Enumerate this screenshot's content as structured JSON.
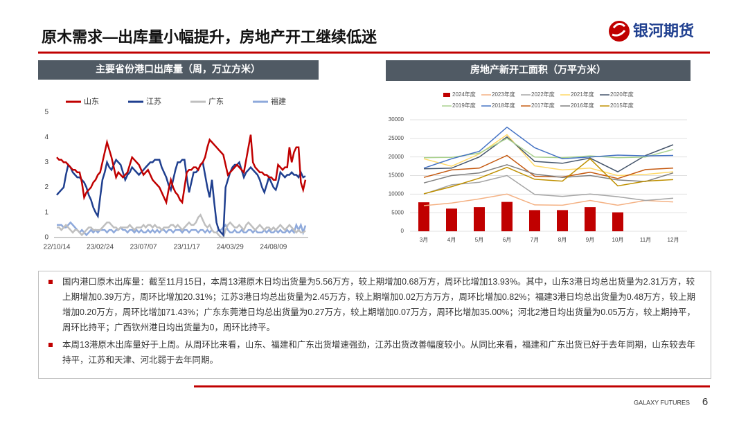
{
  "header": {
    "title": "原木需求—出库量小幅提升，房地产开工继续低迷",
    "logo": "银河期货"
  },
  "chart_data": [
    {
      "type": "line",
      "title": "主要省份港口出库量（周，万立方米）",
      "categories": [
        "22/10/14",
        null,
        null,
        null,
        null,
        null,
        null,
        null,
        null,
        null,
        null,
        null,
        null,
        null,
        null,
        null,
        null,
        null,
        null,
        "23/02/24",
        null,
        null,
        null,
        null,
        null,
        null,
        null,
        null,
        null,
        null,
        null,
        null,
        null,
        null,
        null,
        null,
        null,
        null,
        "23/07/07",
        null,
        null,
        null,
        null,
        null,
        null,
        null,
        null,
        null,
        null,
        null,
        null,
        null,
        null,
        null,
        null,
        null,
        null,
        "23/11/17",
        null,
        null,
        null,
        null,
        null,
        null,
        null,
        null,
        null,
        null,
        null,
        null,
        null,
        null,
        null,
        null,
        null,
        null,
        "24/03/29",
        null,
        null,
        null,
        null,
        null,
        null,
        null,
        null,
        null,
        null,
        null,
        null,
        null,
        null,
        null,
        null,
        null,
        null,
        "24/08/09",
        null,
        null,
        null,
        null,
        null,
        null,
        null,
        null,
        null,
        null,
        null,
        null,
        null,
        null
      ],
      "ylim": [
        0,
        5
      ],
      "yticks": [
        0,
        1,
        2,
        3,
        4,
        5
      ],
      "grid": false,
      "legend": "top",
      "series": [
        {
          "name": "山东",
          "color": "#c00000",
          "values": [
            3.2,
            3.1,
            3.1,
            3.0,
            3.0,
            2.9,
            2.8,
            2.7,
            2.7,
            2.6,
            2.6,
            2.2,
            1.6,
            1.8,
            1.9,
            2.0,
            2.2,
            2.3,
            2.5,
            2.6,
            3.0,
            3.4,
            3.8,
            3.5,
            3.2,
            2.8,
            2.4,
            2.6,
            2.5,
            2.4,
            2.5,
            2.6,
            2.9,
            3.2,
            3.1,
            3.0,
            2.9,
            2.7,
            2.5,
            2.6,
            2.7,
            2.5,
            2.3,
            2.2,
            2.1,
            2.0,
            1.8,
            1.6,
            1.4,
            1.9,
            2.3,
            2.0,
            1.8,
            1.7,
            1.5,
            1.4,
            2.0,
            2.6,
            2.7,
            2.7,
            2.8,
            2.8,
            2.7,
            2.9,
            3.0,
            3.2,
            3.6,
            3.9,
            3.8,
            3.7,
            3.6,
            3.5,
            3.4,
            3.3,
            2.9,
            2.5,
            2.6,
            2.7,
            2.8,
            2.9,
            2.8,
            2.7,
            2.6,
            3.1,
            3.6,
            4.1,
            3.0,
            2.8,
            2.7,
            2.6,
            2.6,
            2.5,
            2.5,
            2.4,
            2.4,
            2.3,
            2.3,
            2.9,
            2.8,
            2.7,
            2.8,
            2.8,
            3.6,
            3.0,
            3.4,
            3.6,
            3.6,
            2.2,
            1.9,
            2.3
          ]
        },
        {
          "name": "江苏",
          "color": "#1f3f8f",
          "values": [
            1.7,
            1.8,
            1.9,
            2.0,
            2.5,
            2.9,
            2.8,
            2.6,
            2.5,
            2.4,
            2.4,
            2.3,
            2.2,
            2.0,
            1.7,
            1.5,
            1.2,
            1.0,
            0.85,
            1.6,
            2.3,
            2.6,
            3.0,
            2.8,
            2.7,
            2.9,
            3.1,
            3.0,
            2.9,
            2.6,
            2.3,
            2.5,
            2.6,
            2.8,
            2.7,
            2.6,
            2.5,
            2.6,
            2.7,
            2.8,
            2.9,
            3.0,
            3.0,
            3.1,
            3.1,
            3.1,
            2.8,
            2.6,
            2.4,
            2.1,
            1.9,
            2.3,
            2.7,
            3.0,
            3.0,
            3.1,
            3.1,
            2.4,
            1.8,
            2.2,
            2.6,
            2.6,
            2.7,
            2.9,
            3.0,
            2.5,
            2.0,
            1.6,
            2.3,
            1.4,
            0.6,
            0.3,
            0.2,
            0.1,
            2.0,
            2.3,
            2.6,
            2.8,
            2.9,
            2.9,
            3.0,
            2.7,
            2.4,
            2.6,
            2.7,
            2.8,
            2.7,
            2.6,
            2.5,
            2.3,
            2.0,
            1.8,
            2.1,
            2.4,
            2.2,
            2.0,
            1.9,
            2.2,
            2.6,
            2.5,
            2.4,
            2.5,
            2.5,
            2.6,
            2.5,
            2.5,
            2.4,
            2.6,
            2.4,
            2.45
          ]
        },
        {
          "name": "广东",
          "color": "#bfbfbf",
          "values": [
            0.4,
            0.4,
            0.3,
            0.4,
            0.5,
            0.4,
            0.3,
            0.2,
            0.3,
            0.3,
            0.2,
            0.1,
            0.2,
            0.3,
            0.4,
            0.4,
            0.3,
            0.3,
            0.3,
            0.3,
            0.4,
            0.5,
            0.6,
            0.6,
            0.5,
            0.4,
            0.4,
            0.3,
            0.4,
            0.4,
            0.4,
            0.4,
            0.5,
            0.4,
            0.3,
            0.4,
            0.4,
            0.4,
            0.5,
            0.4,
            0.5,
            0.5,
            0.4,
            0.5,
            0.4,
            0.4,
            0.3,
            0.4,
            0.4,
            0.4,
            0.5,
            0.5,
            0.4,
            0.5,
            0.4,
            0.3,
            0.4,
            0.5,
            0.6,
            0.5,
            0.5,
            0.6,
            0.8,
            0.9,
            0.7,
            0.5,
            0.4,
            0.5,
            0.3,
            0.2,
            0.2,
            0.1,
            0.0,
            0.0,
            0.3,
            0.5,
            0.6,
            0.5,
            0.4,
            0.4,
            0.5,
            0.4,
            0.3,
            0.5,
            0.6,
            0.5,
            0.4,
            0.3,
            0.4,
            0.5,
            0.4,
            0.3,
            0.4,
            0.4,
            0.3,
            0.4,
            0.3,
            0.4,
            0.5,
            0.4,
            0.3,
            0.4,
            0.5,
            0.4,
            0.3,
            0.2,
            0.3,
            0.2,
            0.2,
            0.27
          ]
        },
        {
          "name": "福建",
          "color": "#8ea9db",
          "values": [
            0.5,
            0.5,
            0.5,
            0.4,
            0.4,
            0.5,
            0.6,
            0.5,
            0.4,
            0.3,
            0.2,
            0.3,
            0.2,
            0.1,
            0.2,
            0.3,
            0.2,
            0.3,
            0.2,
            0.3,
            0.3,
            0.3,
            0.2,
            0.3,
            0.3,
            0.2,
            0.3,
            0.3,
            0.4,
            0.3,
            0.3,
            0.2,
            0.3,
            0.3,
            0.2,
            0.3,
            0.2,
            0.3,
            0.2,
            0.2,
            0.3,
            0.2,
            0.3,
            0.2,
            0.3,
            0.2,
            0.3,
            0.3,
            0.2,
            0.3,
            0.3,
            0.2,
            0.3,
            0.3,
            0.3,
            0.2,
            0.3,
            0.3,
            0.2,
            0.3,
            0.3,
            0.3,
            0.2,
            0.3,
            0.3,
            0.2,
            0.3,
            0.2,
            0.3,
            0.2,
            0.2,
            0.3,
            0.3,
            0.4,
            0.5,
            0.3,
            0.2,
            0.2,
            0.3,
            0.2,
            0.2,
            0.3,
            0.2,
            0.2,
            0.3,
            0.3,
            0.2,
            0.3,
            0.2,
            0.2,
            0.2,
            0.3,
            0.2,
            0.3,
            0.2,
            0.2,
            0.3,
            0.2,
            0.3,
            0.2,
            0.2,
            0.3,
            0.2,
            0.3,
            0.2,
            0.5,
            0.3,
            0.5,
            0.2,
            0.48
          ]
        }
      ]
    },
    {
      "type": "bar",
      "title": "房地产新开工面积（万平方米）",
      "categories": [
        "3月",
        "4月",
        "5月",
        "6月",
        "7月",
        "8月",
        "9月",
        "10月",
        "11月",
        "12月"
      ],
      "ylim": [
        0,
        30000
      ],
      "yticks": [
        0,
        5000,
        10000,
        15000,
        20000,
        25000,
        30000
      ],
      "grid": true,
      "legend": "top",
      "series": [
        {
          "name": "2024年度",
          "type": "bar",
          "color": "#c00000",
          "values": [
            7800,
            6100,
            6500,
            7900,
            5700,
            5700,
            6500,
            5100,
            null,
            null
          ]
        },
        {
          "name": "2023年度",
          "type": "line",
          "color": "#f4b183",
          "values": [
            6900,
            7600,
            8700,
            10000,
            7100,
            7000,
            8300,
            7000,
            8300,
            7900
          ]
        },
        {
          "name": "2022年度",
          "type": "line",
          "color": "#a5a5a5",
          "values": [
            10000,
            12500,
            13200,
            15000,
            9900,
            9400,
            10000,
            9300,
            8300,
            8900
          ]
        },
        {
          "name": "2021年度",
          "type": "line",
          "color": "#ffd966",
          "values": [
            19500,
            17500,
            20800,
            26000,
            17600,
            16500,
            17000,
            15000,
            15300,
            16000
          ]
        },
        {
          "name": "2020年度",
          "type": "line",
          "color": "#44546a",
          "values": [
            16800,
            17000,
            20000,
            25400,
            18800,
            18300,
            19700,
            16000,
            20400,
            23300
          ]
        },
        {
          "name": "2019年度",
          "type": "line",
          "color": "#a9d18e",
          "values": [
            19800,
            19900,
            21000,
            25000,
            20000,
            19800,
            20300,
            19800,
            20000,
            22000
          ]
        },
        {
          "name": "2018年度",
          "type": "line",
          "color": "#4472c4",
          "values": [
            17000,
            19500,
            21500,
            28000,
            22500,
            19500,
            20000,
            20500,
            20300,
            20400
          ]
        },
        {
          "name": "2017年度",
          "type": "line",
          "color": "#c55a11",
          "values": [
            14500,
            16500,
            17000,
            20400,
            14800,
            14600,
            15900,
            14200,
            16600,
            17000
          ]
        },
        {
          "name": "2016年度",
          "type": "line",
          "color": "#7f7f7f",
          "values": [
            13000,
            15000,
            15700,
            17900,
            15400,
            14500,
            15000,
            13800,
            13400,
            15700
          ]
        },
        {
          "name": "2015年度",
          "type": "line",
          "color": "#bf9000",
          "values": [
            10100,
            12000,
            14300,
            17200,
            14000,
            13500,
            19500,
            12200,
            13500,
            13900
          ]
        }
      ]
    }
  ],
  "notes": [
    "国内港口原木出库量：截至11月15日，本周13港原木日均出货量为5.56万方，较上期增加0.68万方，周环比增加13.93%。其中，山东3港日均总出货量为2.31万方，较上期增加0.39万方，周环比增加20.31%；江苏3港日均总出货量为2.45万方，较上期增加0.02万方万方，周环比增加0.82%；福建3港日均总出货量为0.48万方，较上期增加0.20万方，周环比增加71.43%；广东东莞港日均总出货量为0.27万方，较上期增加0.07万方，周环比增加35.00%；河北2港日均出货量为0.05万方，较上期持平，周环比持平；广西钦州港日均出货量为0，周环比持平。",
    "本周13港原木出库量好于上周。从周环比来看，山东、福建和广东出货增速强劲，江苏出货改善幅度较小。从同比来看，福建和广东出货已好于去年同期，山东较去年持平，江苏和天津、河北弱于去年同期。"
  ],
  "footer": {
    "brand": "GALAXY FUTURES",
    "page": "6"
  }
}
